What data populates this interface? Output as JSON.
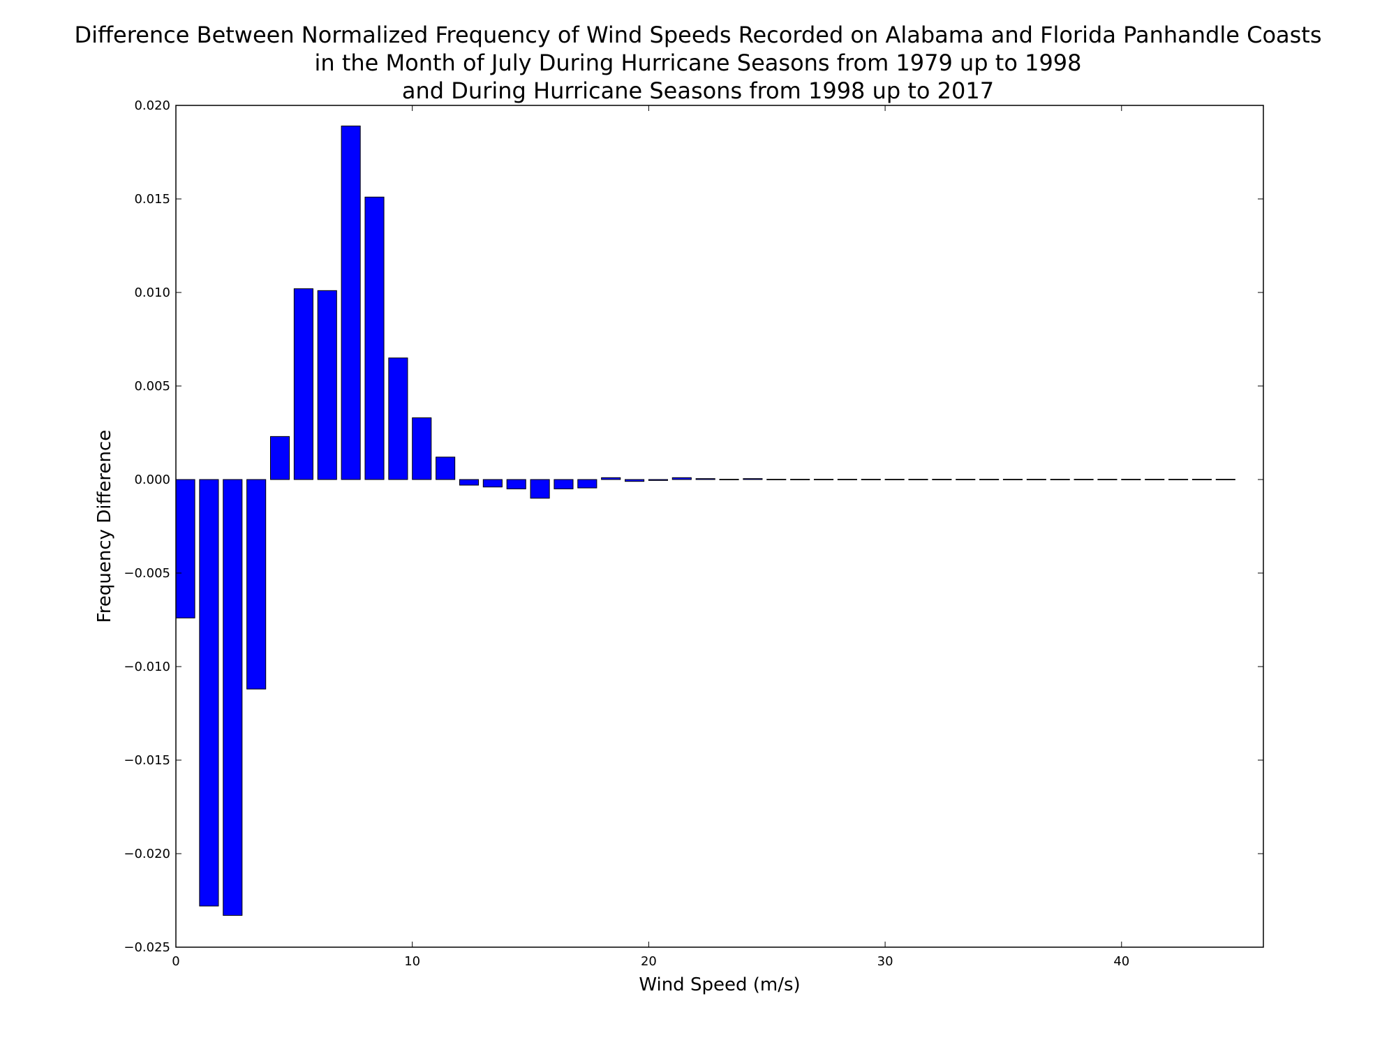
{
  "chart_data": {
    "type": "bar",
    "title": [
      "Difference Between Normalized Frequency of Wind Speeds Recorded on Alabama and Florida Panhandle Coasts",
      "in the Month of July During Hurricane Seasons from 1979 up to 1998",
      "and During Hurricane Seasons from 1998 up to 2017"
    ],
    "xlabel": "Wind Speed (m/s)",
    "ylabel": "Frequency Difference",
    "xlim": [
      0,
      46
    ],
    "ylim": [
      -0.025,
      0.02
    ],
    "xticks": [
      0,
      10,
      20,
      30,
      40
    ],
    "xtick_labels": [
      "0",
      "10",
      "20",
      "30",
      "40"
    ],
    "yticks": [
      -0.025,
      -0.02,
      -0.015,
      -0.01,
      -0.005,
      0.0,
      0.005,
      0.01,
      0.015,
      0.02
    ],
    "ytick_labels": [
      "−0.025",
      "−0.020",
      "−0.015",
      "−0.010",
      "−0.005",
      "0.000",
      "0.005",
      "0.010",
      "0.015",
      "0.020"
    ],
    "bar_width": 0.8,
    "grid": false,
    "legend": "none",
    "bar_color": "#0000ff",
    "edge_color": "#000000",
    "x": [
      0,
      1,
      2,
      3,
      4,
      5,
      6,
      7,
      8,
      9,
      10,
      11,
      12,
      13,
      14,
      15,
      16,
      17,
      18,
      19,
      20,
      21,
      22,
      23,
      24,
      25,
      26,
      27,
      28,
      29,
      30,
      31,
      32,
      33,
      34,
      35,
      36,
      37,
      38,
      39,
      40,
      41,
      42,
      43,
      44
    ],
    "values": [
      -0.0074,
      -0.0228,
      -0.0233,
      -0.0112,
      0.0023,
      0.0102,
      0.0101,
      0.0189,
      0.0151,
      0.0065,
      0.0033,
      0.0012,
      -0.0003,
      -0.0004,
      -0.0005,
      -0.001,
      -0.0005,
      -0.00045,
      0.0001,
      -0.0001,
      -5e-05,
      0.0001,
      5e-05,
      0.0,
      5e-05,
      0.0,
      0.0,
      0.0,
      0.0,
      0.0,
      0.0,
      0.0,
      0.0,
      0.0,
      0.0,
      0.0,
      0.0,
      0.0,
      0.0,
      0.0,
      0.0,
      0.0,
      0.0,
      0.0,
      0.0
    ]
  }
}
